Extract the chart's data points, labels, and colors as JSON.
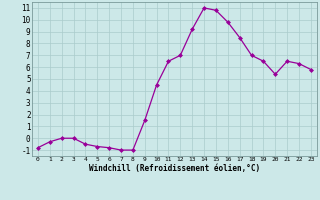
{
  "x": [
    0,
    1,
    2,
    3,
    4,
    5,
    6,
    7,
    8,
    9,
    10,
    11,
    12,
    13,
    14,
    15,
    16,
    17,
    18,
    19,
    20,
    21,
    22,
    23
  ],
  "y": [
    -0.8,
    -0.3,
    0.0,
    0.0,
    -0.5,
    -0.7,
    -0.8,
    -1.0,
    -1.0,
    1.5,
    4.5,
    6.5,
    7.0,
    9.2,
    11.0,
    10.8,
    9.8,
    8.5,
    7.0,
    6.5,
    5.4,
    6.5,
    6.3,
    5.8
  ],
  "line_color": "#990099",
  "marker": "D",
  "marker_size": 2.0,
  "bg_color": "#cce8e8",
  "grid_color": "#aacccc",
  "xlabel": "Windchill (Refroidissement éolien,°C)",
  "ylim": [
    -1.5,
    11.5
  ],
  "xlim": [
    -0.5,
    23.5
  ],
  "yticks": [
    -1,
    0,
    1,
    2,
    3,
    4,
    5,
    6,
    7,
    8,
    9,
    10,
    11
  ],
  "xticks": [
    0,
    1,
    2,
    3,
    4,
    5,
    6,
    7,
    8,
    9,
    10,
    11,
    12,
    13,
    14,
    15,
    16,
    17,
    18,
    19,
    20,
    21,
    22,
    23
  ],
  "xlabel_fontsize": 5.5,
  "tick_fontsize_x": 4.5,
  "tick_fontsize_y": 5.5
}
